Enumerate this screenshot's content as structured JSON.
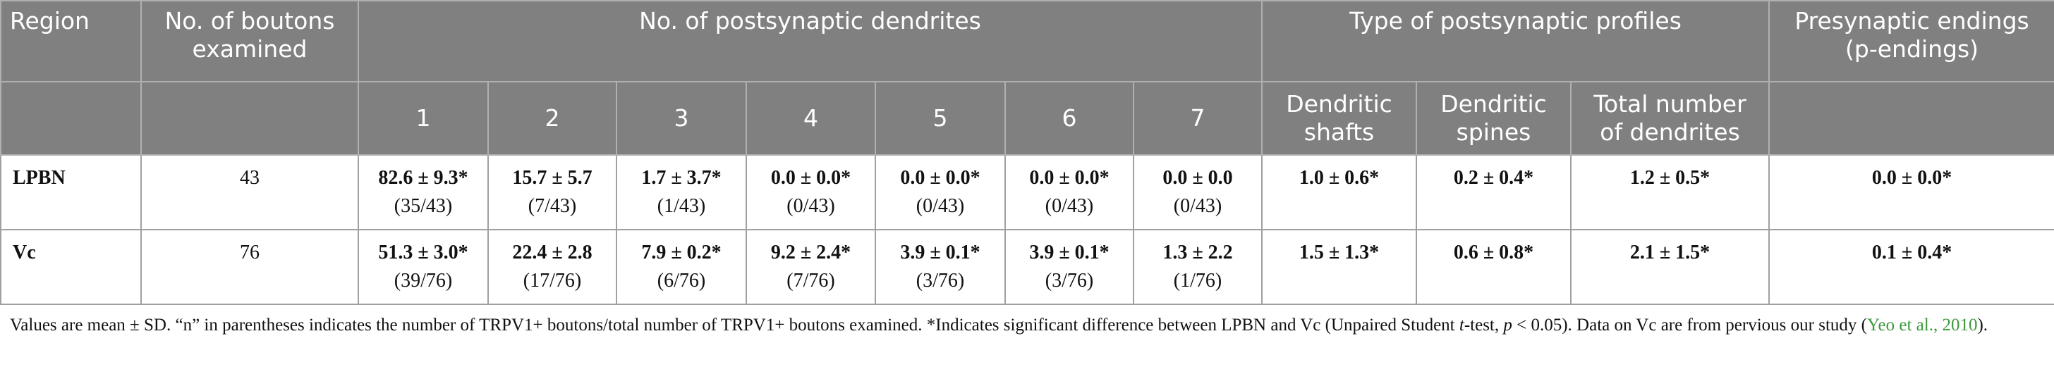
{
  "header": {
    "row1": [
      "Region",
      "No. of boutons examined",
      "No. of postsynaptic dendrites",
      "Type of postsynaptic profiles",
      "Presynaptic endings (p-endings)"
    ],
    "row2": [
      "1",
      "2",
      "3",
      "4",
      "5",
      "6",
      "7",
      "Dendritic shafts",
      "Dendritic spines",
      "Total number of dendrites"
    ]
  },
  "rows": [
    {
      "region": "LPBN",
      "boutons": "43",
      "cells": [
        {
          "value": "82.6 ± 9.3*",
          "fraction": "(35/43)"
        },
        {
          "value": "15.7 ± 5.7",
          "fraction": "(7/43)"
        },
        {
          "value": "1.7 ± 3.7*",
          "fraction": "(1/43)"
        },
        {
          "value": "0.0 ± 0.0*",
          "fraction": "(0/43)"
        },
        {
          "value": "0.0 ± 0.0*",
          "fraction": "(0/43)"
        },
        {
          "value": "0.0 ± 0.0*",
          "fraction": "(0/43)"
        },
        {
          "value": "0.0 ± 0.0",
          "fraction": "(0/43)"
        },
        {
          "value": "1.0 ± 0.6*"
        },
        {
          "value": "0.2 ± 0.4*"
        },
        {
          "value": "1.2 ± 0.5*"
        },
        {
          "value": "0.0 ± 0.0*"
        }
      ]
    },
    {
      "region": "Vc",
      "boutons": "76",
      "cells": [
        {
          "value": "51.3 ± 3.0*",
          "fraction": "(39/76)"
        },
        {
          "value": "22.4 ± 2.8",
          "fraction": "(17/76)"
        },
        {
          "value": "7.9 ± 0.2*",
          "fraction": "(6/76)"
        },
        {
          "value": "9.2 ± 2.4*",
          "fraction": "(7/76)"
        },
        {
          "value": "3.9 ± 0.1*",
          "fraction": "(3/76)"
        },
        {
          "value": "3.9 ± 0.1*",
          "fraction": "(3/76)"
        },
        {
          "value": "1.3 ± 2.2",
          "fraction": "(1/76)"
        },
        {
          "value": "1.5 ± 1.3*"
        },
        {
          "value": "0.6 ± 0.8*"
        },
        {
          "value": "2.1 ± 1.5*"
        },
        {
          "value": "0.1 ± 0.4*"
        }
      ]
    }
  ],
  "footnote": [
    "Values are mean ± SD. “n” in parentheses indicates the number of TRPV1+ boutons/total number of TRPV1+ boutons examined. *Indicates significant difference between LPBN and Vc (Unpaired Student ",
    "t",
    "-test, ",
    "p",
    " < 0.05). Data on Vc are from pervious our study (",
    "Yeo et al., 2010",
    ")."
  ]
}
